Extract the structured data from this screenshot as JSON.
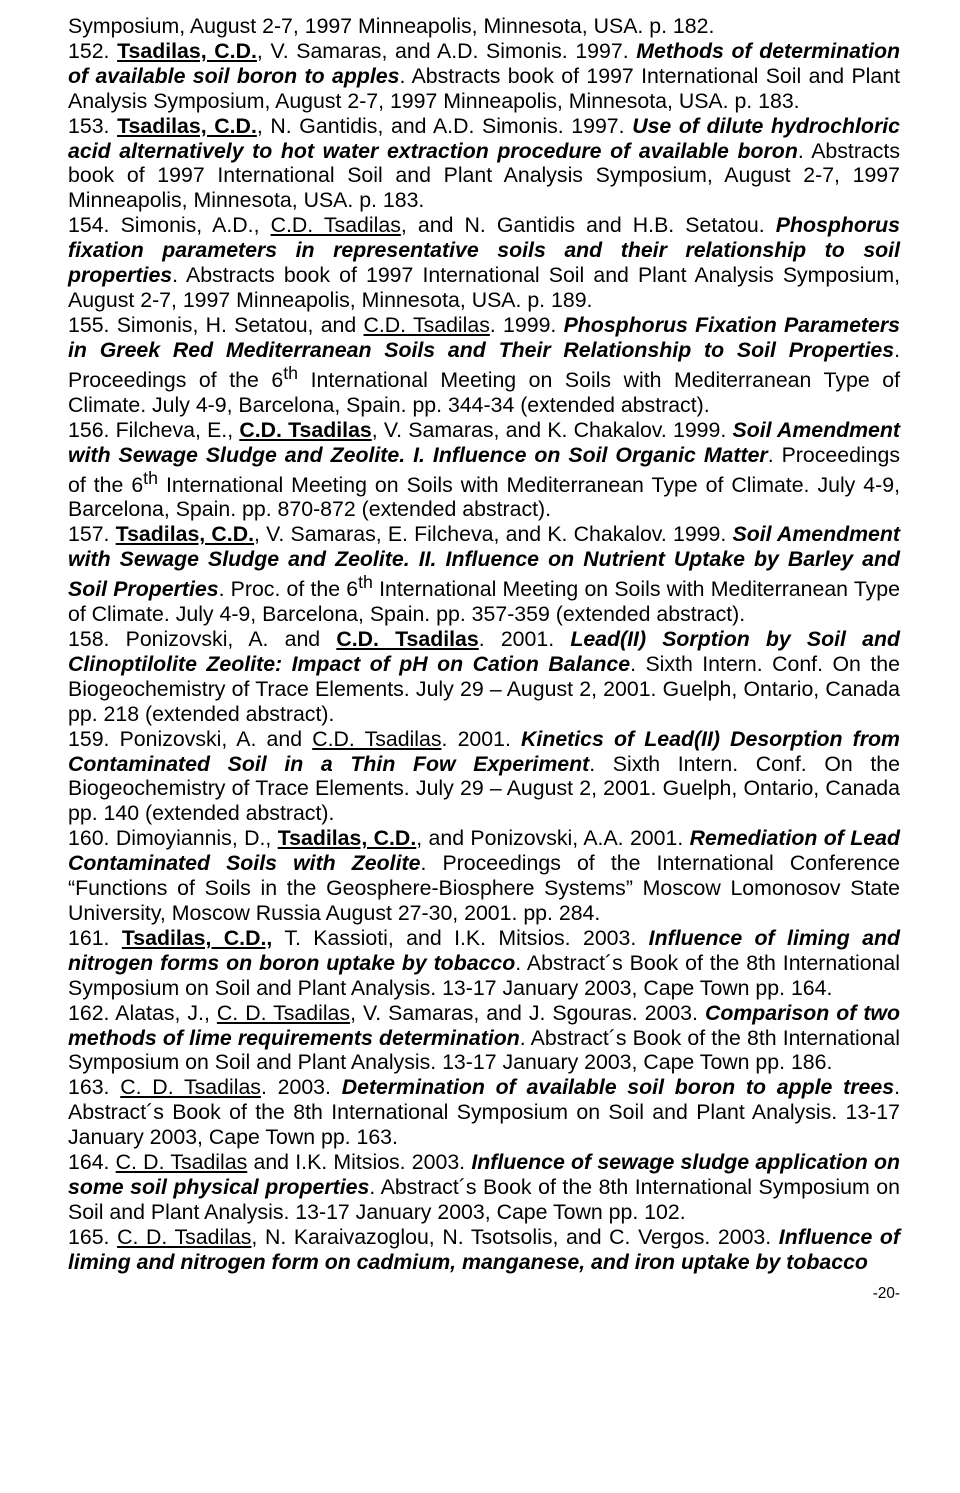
{
  "entries": [
    {
      "prefix": "Symposium, August 2-7, 1997 Minneapolis, Minnesota, USA. p. 182.",
      "num": null
    },
    {
      "num": "152.",
      "authors_html": "<span class='b u'>Tsadilas, C.D.</span>, V. Samaras, and A.D. Simonis. 1997.",
      "title": "Methods of determination of available soil boron to apples",
      "rest": ". Abstracts book of 1997 International Soil and Plant Analysis Symposium, August 2-7, 1997 Minneapolis, Minnesota, USA. p. 183."
    },
    {
      "num": "153.",
      "authors_html": "<span class='b u'>Tsadilas, C.D.</span>, N. Gantidis, and A.D. Simonis. 1997.",
      "title": "Use of dilute hydrochloric acid alternatively to hot water extraction procedure of available boron",
      "rest": ". Abstracts book of 1997 International Soil and Plant Analysis Symposium, August 2-7, 1997 Minneapolis, Minnesota, USA. p. 183."
    },
    {
      "num": "154.",
      "authors_html": "Simonis, A.D., <span class='u'>C.D. Tsadilas</span>, and N. Gantidis and H.B. Setatou.",
      "title": "Phosphorus fixation parameters in representative soils and their relationship to soil properties",
      "rest": ". Abstracts book of 1997 International Soil and Plant Analysis Symposium, August 2-7, 1997 Minneapolis, Minnesota, USA. p. 189."
    },
    {
      "num": "155.",
      "authors_html": "Simonis, H. Setatou, and <span class='u'>C.D. Tsadilas</span>. 1999.",
      "title": "Phosphorus Fixation Parameters in Greek Red Mediterranean Soils and Their Relationship to Soil Properties",
      "rest": ". Proceedings of the 6<sup>th</sup> International Meeting on Soils with Mediterranean Type of Climate. July 4-9, Barcelona, Spain. pp. 344-34 (extended abstract)."
    },
    {
      "num": "156.",
      "authors_html": "Filcheva, E., <span class='b u'>C.D. Tsadilas</span>, V. Samaras, and K. Chakalov. 1999.",
      "title": "Soil Amendment with Sewage Sludge and Zeolite. I. Influence on Soil Organic Matter",
      "rest": ". Proceedings of the 6<sup>th</sup> International Meeting on Soils with Mediterranean Type of Climate. July 4-9, Barcelona, Spain. pp. 870-872 (extended abstract)."
    },
    {
      "num": "157.",
      "authors_html": "<span class='b u'>Tsadilas, C.D.</span>, V. Samaras, E. Filcheva, and K. Chakalov. 1999.",
      "title": "Soil Amendment with Sewage Sludge and Zeolite. II. Influence on Nutrient Uptake by Barley and Soil Properties",
      "rest": ". Proc. of the 6<sup>th</sup> International Meeting on Soils with Mediterranean Type of Climate. July 4-9, Barcelona, Spain. pp. 357-359 (extended abstract)."
    },
    {
      "num": "158.",
      "authors_html": "Ponizovski, A. and <span class='b u'>C.D. Tsadilas</span>. 2001.",
      "title": "Lead(II) Sorption by Soil and Clinoptilolite Zeolite: Impact of pH on Cation Balance",
      "rest": ". Sixth Intern. Conf. On the Biogeochemistry of Trace Elements. July 29 – August 2, 2001. Guelph, Ontario, Canada pp. 218 (extended abstract)."
    },
    {
      "num": "159.",
      "authors_html": "Ponizovski, A. and <span class='u'>C.D. Tsadilas</span>. 2001.",
      "title": "Kinetics of Lead(II) Desorption from Contaminated Soil in a Thin Fow Experiment",
      "rest": ". Sixth Intern. Conf. On the Biogeochemistry of Trace Elements. July 29 – August 2, 2001. Guelph, Ontario, Canada pp. 140 (extended abstract)."
    },
    {
      "num": "160.",
      "authors_html": "Dimoyiannis, D., <span class='b u'>Tsadilas, C.D.</span>, and Ponizovski, A.A. 2001.",
      "title": "Remediation of Lead Contaminated Soils with Zeolite",
      "rest": ". Proceedings of the International Conference “Functions of Soils in the Geosphere-Biosphere Systems” Moscow Lomonosov State University, Moscow Russia August 27-30, 2001. pp. 284."
    },
    {
      "num": "161.",
      "authors_html": "<span class='b u'>Tsadilas, C.D.,</span> T. Kassioti, and I.K. Mitsios. 2003.",
      "title": "Influence of liming and nitrogen forms on boron uptake by tobacco",
      "rest": ". Abstract´s Book of the 8th International Symposium on Soil and Plant Analysis. 13-17 January 2003, Cape Town pp. 164."
    },
    {
      "num": "162.",
      "authors_html": "Alatas, J., <span class='u'>C. D. Tsadilas</span>, V. Samaras, and J. Sgouras. 2003.",
      "title": "Comparison of two methods of lime requirements determination",
      "rest": ". Abstract´s Book of the 8th International Symposium on Soil and Plant Analysis. 13-17 January 2003, Cape Town pp. 186."
    },
    {
      "num": "163.",
      "authors_html": "<span class='u'>C. D. Tsadilas</span>. 2003.",
      "title": "Determination of available soil boron to apple trees",
      "rest": ". Abstract´s Book of the 8th International Symposium on Soil and Plant Analysis. 13-17 January 2003, Cape Town pp. 163."
    },
    {
      "num": "164.",
      "authors_html": "<span class='u'>C. D. Tsadilas</span> and  I.K. Mitsios. 2003.",
      "title": "Influence of sewage sludge application on some soil physical properties",
      "rest": ". Abstract´s Book of the 8th International Symposium on Soil and Plant Analysis. 13-17 January 2003, Cape Town pp. 102."
    },
    {
      "num": "165.",
      "authors_html": "<span class='u'>C. D. Tsadilas</span>, N. Karaivazoglou, N. Tsotsolis, and C. Vergos. 2003.",
      "title": "Influence of liming and nitrogen form on cadmium, manganese, and iron uptake by tobacco",
      "rest": ""
    }
  ],
  "page_number": "-20-"
}
